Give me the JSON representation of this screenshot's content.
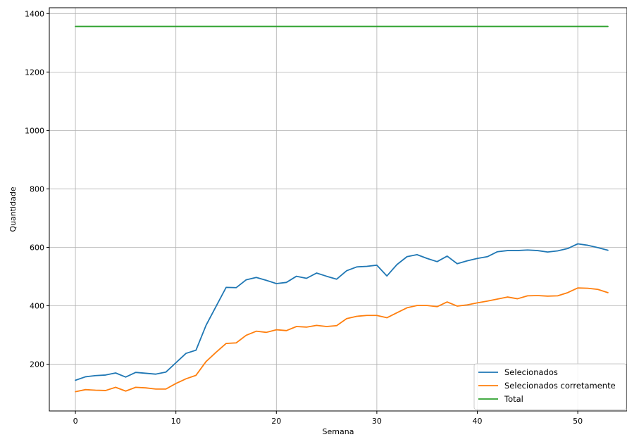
{
  "chart_data": {
    "type": "line",
    "xlabel": "Semana",
    "ylabel": "Quantidade",
    "xlim": [
      -2.6,
      54.9
    ],
    "ylim": [
      40,
      1420
    ],
    "xticks": [
      0,
      10,
      20,
      30,
      40,
      50
    ],
    "yticks": [
      200,
      400,
      600,
      800,
      1000,
      1200,
      1400
    ],
    "grid": true,
    "legend_position": "lower-right",
    "series": [
      {
        "name": "Selecionados",
        "color": "#1f77b4",
        "x": [
          0,
          1,
          2,
          3,
          4,
          5,
          6,
          7,
          8,
          9,
          10,
          11,
          12,
          13,
          14,
          15,
          16,
          17,
          18,
          19,
          20,
          21,
          22,
          23,
          24,
          25,
          26,
          27,
          28,
          29,
          30,
          31,
          32,
          33,
          34,
          35,
          36,
          37,
          38,
          39,
          40,
          41,
          42,
          43,
          44,
          45,
          46,
          47,
          48,
          49,
          50,
          51,
          52,
          53
        ],
        "values": [
          145,
          157,
          161,
          163,
          170,
          156,
          172,
          169,
          166,
          173,
          205,
          237,
          248,
          333,
          398,
          463,
          462,
          489,
          497,
          487,
          476,
          480,
          501,
          494,
          512,
          501,
          491,
          520,
          533,
          535,
          539,
          502,
          541,
          568,
          575,
          562,
          551,
          570,
          544,
          554,
          562,
          568,
          585,
          589,
          589,
          591,
          589,
          584,
          588,
          596,
          612,
          607,
          599,
          590
        ]
      },
      {
        "name": "Selecionados corretamente",
        "color": "#ff7f0e",
        "x": [
          0,
          1,
          2,
          3,
          4,
          5,
          6,
          7,
          8,
          9,
          10,
          11,
          12,
          13,
          14,
          15,
          16,
          17,
          18,
          19,
          20,
          21,
          22,
          23,
          24,
          25,
          26,
          27,
          28,
          29,
          30,
          31,
          32,
          33,
          34,
          35,
          36,
          37,
          38,
          39,
          40,
          41,
          42,
          43,
          44,
          45,
          46,
          47,
          48,
          49,
          50,
          51,
          52,
          53
        ],
        "values": [
          106,
          113,
          111,
          110,
          121,
          108,
          121,
          119,
          115,
          115,
          134,
          150,
          162,
          209,
          241,
          271,
          273,
          299,
          313,
          309,
          318,
          315,
          329,
          327,
          333,
          329,
          332,
          356,
          364,
          367,
          367,
          359,
          376,
          393,
          401,
          401,
          397,
          413,
          399,
          403,
          410,
          416,
          423,
          430,
          424,
          434,
          435,
          433,
          434,
          445,
          461,
          460,
          456,
          445
        ]
      },
      {
        "name": "Total",
        "color": "#2ca02c",
        "x": [
          0,
          53
        ],
        "values": [
          1356,
          1356
        ]
      }
    ]
  }
}
